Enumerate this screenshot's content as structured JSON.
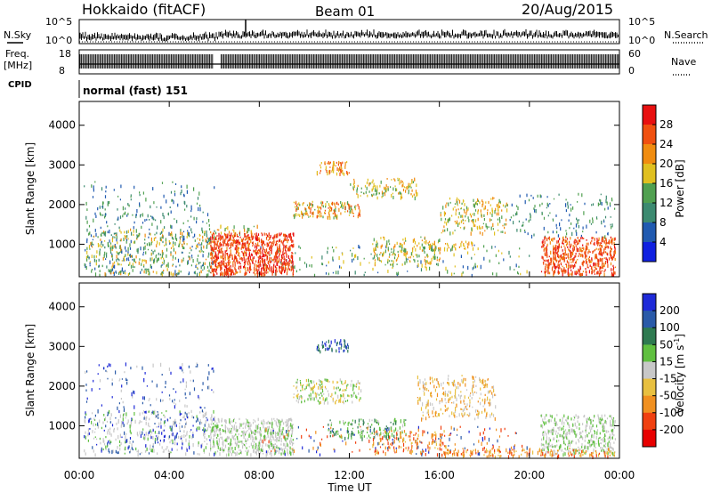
{
  "header": {
    "station": "Hokkaido (fitACF)",
    "beam": "Beam 01",
    "date": "20/Aug/2015"
  },
  "noise_panel": {
    "left_label": "N.Sky",
    "right_label": "N.Search",
    "ticks": [
      "10^5",
      "10^0"
    ]
  },
  "freq_panel": {
    "left_label_1": "Freq.",
    "left_label_2": "[MHz]",
    "left_ticks": [
      "18",
      "8"
    ],
    "right_label": "Nave",
    "right_ticks": [
      "60",
      "0"
    ]
  },
  "cpid": {
    "label": "CPID",
    "value": "normal (fast) 151"
  },
  "colors": {
    "power": [
      "#1020e0",
      "#205ab0",
      "#3c8a70",
      "#50a050",
      "#e0c020",
      "#f08c10",
      "#f05010",
      "#e81010"
    ],
    "velocity": [
      "#1e2ad8",
      "#2a5aa8",
      "#2e7a50",
      "#60c040",
      "#c8c8c8",
      "#e8c040",
      "#f09020",
      "#f04010",
      "#e80000"
    ]
  },
  "chart_data": [
    {
      "type": "heatmap",
      "name": "power-map",
      "xlabel": "",
      "ylabel": "Slant Range [km]",
      "x_range_hours": [
        0,
        24
      ],
      "ylim": [
        180,
        4600
      ],
      "y_ticks": [
        "1000",
        "2000",
        "3000",
        "4000"
      ],
      "y_tick_values": [
        1000,
        2000,
        3000,
        4000
      ],
      "colorbar_label": "Power [dB]",
      "colorbar_ticks": [
        "4",
        "8",
        "12",
        "16",
        "20",
        "24",
        "28"
      ]
    },
    {
      "type": "heatmap",
      "name": "velocity-map",
      "xlabel": "Time UT",
      "ylabel": "Slant Range [km]",
      "x_range_hours": [
        0,
        24
      ],
      "x_ticks": [
        "00:00",
        "04:00",
        "08:00",
        "12:00",
        "16:00",
        "20:00",
        "00:00"
      ],
      "x_tick_values": [
        0,
        4,
        8,
        12,
        16,
        20,
        24
      ],
      "ylim": [
        180,
        4600
      ],
      "y_ticks": [
        "1000",
        "2000",
        "3000",
        "4000"
      ],
      "y_tick_values": [
        1000,
        2000,
        3000,
        4000
      ],
      "colorbar_label": "Velocity [m s",
      "colorbar_label_sup": "-1",
      "colorbar_label_end": "]",
      "colorbar_ticks": [
        "200",
        "100",
        "50",
        "15",
        "-15",
        "-50",
        "-100",
        "-200"
      ]
    }
  ]
}
